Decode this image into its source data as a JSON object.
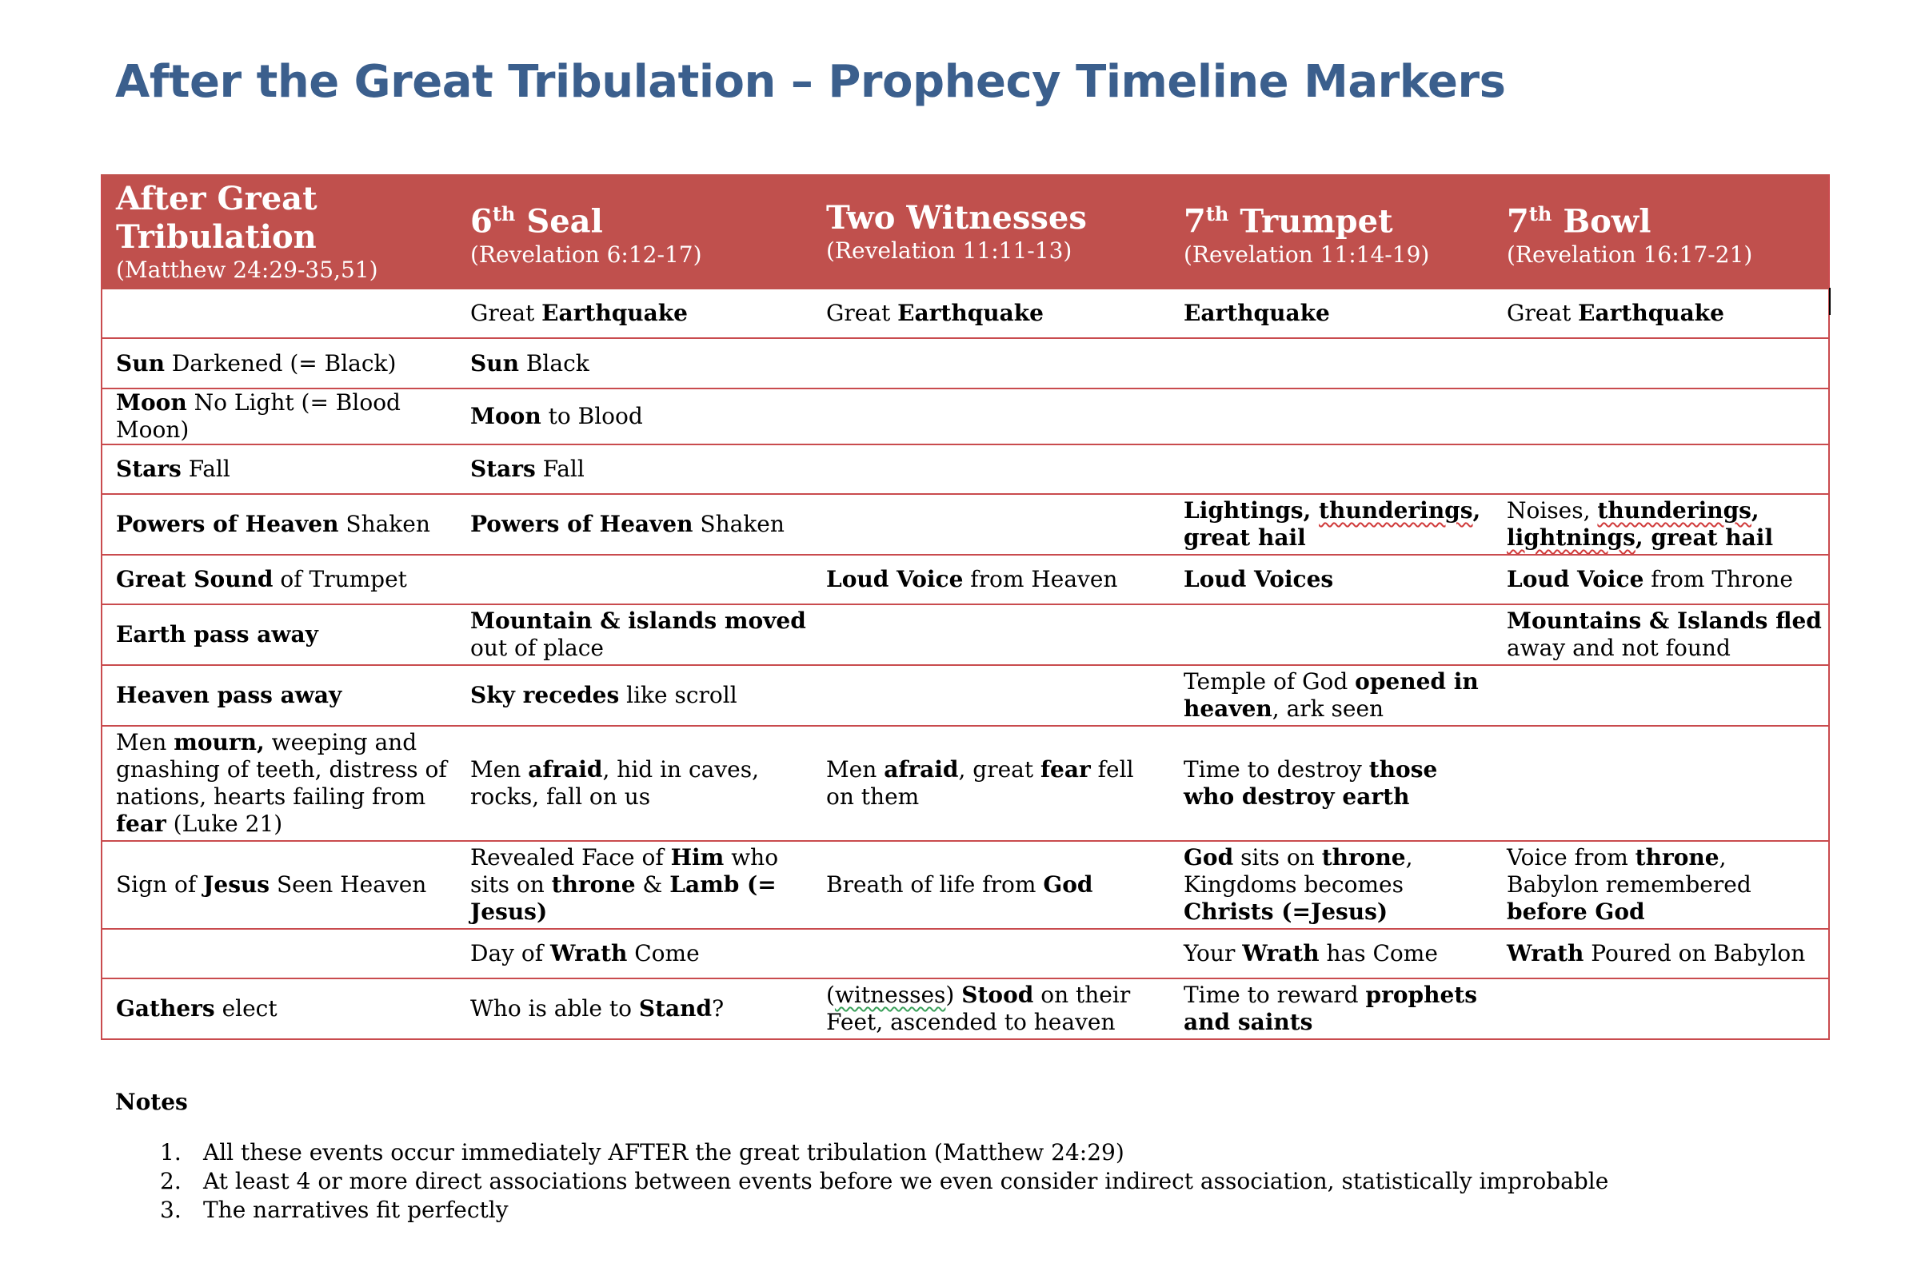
{
  "title": "After the Great Tribulation – Prophecy Timeline Markers",
  "table": {
    "headers": [
      {
        "main": "After Great Tribulation",
        "sup": "",
        "rest": "",
        "sub": "(Matthew 24:29-35,51)"
      },
      {
        "main": "6",
        "sup": "th",
        "rest": " Seal",
        "sub": "(Revelation 6:12-17)"
      },
      {
        "main": "Two Witnesses",
        "sup": "",
        "rest": "",
        "sub": "(Revelation 11:11-13)"
      },
      {
        "main": "7",
        "sup": "th",
        "rest": " Trumpet",
        "sub": "(Revelation 11:14-19)"
      },
      {
        "main": "7",
        "sup": "th",
        "rest": " Bowl",
        "sub": "(Revelation 16:17-21)"
      }
    ],
    "rows": [
      {
        "height": 62,
        "cells": [
          [],
          [
            {
              "t": "Great "
            },
            {
              "t": "Earthquake",
              "b": true
            }
          ],
          [
            {
              "t": "Great "
            },
            {
              "t": "Earthquake",
              "b": true
            }
          ],
          [
            {
              "t": "Earthquake",
              "b": true
            }
          ],
          [
            {
              "t": "Great "
            },
            {
              "t": "Earthquake",
              "b": true
            }
          ]
        ]
      },
      {
        "height": 63,
        "cells": [
          [
            {
              "t": "Sun",
              "b": true
            },
            {
              "t": " Darkened (= Black)"
            }
          ],
          [
            {
              "t": "Sun",
              "b": true
            },
            {
              "t": " Black"
            }
          ],
          [],
          [],
          []
        ]
      },
      {
        "height": 62,
        "cells": [
          [
            {
              "t": "Moon",
              "b": true
            },
            {
              "t": " No Light (= Blood Moon)"
            }
          ],
          [
            {
              "t": "Moon",
              "b": true
            },
            {
              "t": " to Blood"
            }
          ],
          [],
          [],
          []
        ]
      },
      {
        "height": 62,
        "cells": [
          [
            {
              "t": "Stars",
              "b": true
            },
            {
              "t": " Fall"
            }
          ],
          [
            {
              "t": "Stars",
              "b": true
            },
            {
              "t": " Fall"
            }
          ],
          [],
          [],
          []
        ]
      },
      {
        "height": 76,
        "cells": [
          [
            {
              "t": "Powers of Heaven",
              "b": true
            },
            {
              "t": " Shaken"
            }
          ],
          [
            {
              "t": "Powers of Heaven",
              "b": true
            },
            {
              "t": " Shaken"
            }
          ],
          [],
          [
            {
              "t": "Lightings, ",
              "b": true
            },
            {
              "t": "thunderings",
              "b": true,
              "sq": true
            },
            {
              "t": ", great hail",
              "b": true
            }
          ],
          [
            {
              "t": "Noises, "
            },
            {
              "t": "thunderings",
              "b": true,
              "sq": true
            },
            {
              "t": ", ",
              "b": true
            },
            {
              "t": "lightnings",
              "b": true,
              "sq": true
            },
            {
              "t": ", great hail",
              "b": true
            }
          ]
        ]
      },
      {
        "height": 62,
        "cells": [
          [
            {
              "t": "Great Sound",
              "b": true
            },
            {
              "t": " of Trumpet"
            }
          ],
          [],
          [
            {
              "t": "Loud Voice",
              "b": true
            },
            {
              "t": " from Heaven"
            }
          ],
          [
            {
              "t": "Loud Voices",
              "b": true
            }
          ],
          [
            {
              "t": "Loud Voice",
              "b": true
            },
            {
              "t": " from Throne"
            }
          ]
        ]
      },
      {
        "height": 76,
        "cells": [
          [
            {
              "t": "Earth pass away",
              "b": true
            }
          ],
          [
            {
              "t": "Mountain & islands moved",
              "b": true
            },
            {
              "t": " out of place"
            }
          ],
          [],
          [],
          [
            {
              "t": "Mountains & Islands fled",
              "b": true
            },
            {
              "t": " away and not found"
            }
          ]
        ]
      },
      {
        "height": 76,
        "cells": [
          [
            {
              "t": "Heaven pass away",
              "b": true
            }
          ],
          [
            {
              "t": "Sky recedes",
              "b": true
            },
            {
              "t": " like scroll"
            }
          ],
          [],
          [
            {
              "t": "Temple of God "
            },
            {
              "t": "opened in heaven",
              "b": true
            },
            {
              "t": ", ark seen"
            }
          ],
          []
        ]
      },
      {
        "height": 144,
        "cells": [
          [
            {
              "t": "Men "
            },
            {
              "t": "mourn,",
              "b": true
            },
            {
              "t": " weeping and gnashing of teeth, distress of nations, hearts failing from "
            },
            {
              "t": "fear",
              "b": true
            },
            {
              "t": " (Luke 21)"
            }
          ],
          [
            {
              "t": "Men "
            },
            {
              "t": "afraid",
              "b": true
            },
            {
              "t": ", hid in caves, rocks, fall on us"
            }
          ],
          [
            {
              "t": "Men "
            },
            {
              "t": "afraid",
              "b": true
            },
            {
              "t": ", great "
            },
            {
              "t": "fear",
              "b": true
            },
            {
              "t": " fell on them"
            }
          ],
          [
            {
              "t": "Time to destroy "
            },
            {
              "t": "those who destroy earth",
              "b": true
            }
          ],
          []
        ]
      },
      {
        "height": 110,
        "cells": [
          [
            {
              "t": "Sign of "
            },
            {
              "t": "Jesus",
              "b": true
            },
            {
              "t": " Seen Heaven"
            }
          ],
          [
            {
              "t": "Revealed Face of "
            },
            {
              "t": "Him",
              "b": true
            },
            {
              "t": " who sits on "
            },
            {
              "t": "throne",
              "b": true
            },
            {
              "t": " & "
            },
            {
              "t": "Lamb (= Jesus)",
              "b": true
            }
          ],
          [
            {
              "t": "Breath of life from "
            },
            {
              "t": "God",
              "b": true
            }
          ],
          [
            {
              "t": "God",
              "b": true
            },
            {
              "t": " sits on "
            },
            {
              "t": "throne",
              "b": true
            },
            {
              "t": ", Kingdoms becomes "
            },
            {
              "t": "Christs (=Jesus)",
              "b": true
            }
          ],
          [
            {
              "t": "Voice from "
            },
            {
              "t": "throne",
              "b": true
            },
            {
              "t": ", Babylon remembered "
            },
            {
              "t": "before God",
              "b": true
            }
          ]
        ]
      },
      {
        "height": 62,
        "cells": [
          [],
          [
            {
              "t": "Day of "
            },
            {
              "t": "Wrath",
              "b": true
            },
            {
              "t": " Come"
            }
          ],
          [],
          [
            {
              "t": "Your "
            },
            {
              "t": "Wrath",
              "b": true
            },
            {
              "t": " has Come"
            }
          ],
          [
            {
              "t": "Wrath",
              "b": true
            },
            {
              "t": " Poured on Babylon"
            }
          ]
        ]
      },
      {
        "height": 76,
        "cells": [
          [
            {
              "t": "Gathers",
              "b": true
            },
            {
              "t": " elect"
            }
          ],
          [
            {
              "t": "Who is able to "
            },
            {
              "t": "Stand",
              "b": true
            },
            {
              "t": "?"
            }
          ],
          [
            {
              "t": "("
            },
            {
              "t": "witnesses",
              "sqg": true
            },
            {
              "t": ") "
            },
            {
              "t": "Stood",
              "b": true
            },
            {
              "t": " on their Feet, ascended to heaven"
            }
          ],
          [
            {
              "t": "Time to reward "
            },
            {
              "t": "prophets and saints",
              "b": true
            }
          ],
          []
        ]
      }
    ]
  },
  "notes": {
    "title": "Notes",
    "items": [
      {
        "num": "1.",
        "text": "All these events occur immediately AFTER the great tribulation (Matthew 24:29)"
      },
      {
        "num": "2.",
        "text": "At least 4 or more direct associations between events before we even consider indirect association, statistically improbable"
      },
      {
        "num": "3.",
        "text": "The narratives fit perfectly"
      }
    ]
  }
}
